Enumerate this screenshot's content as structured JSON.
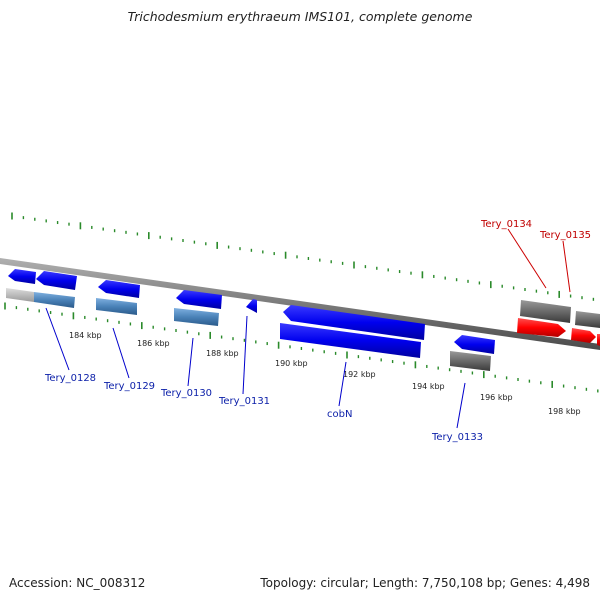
{
  "title": "Trichodesmium erythraeum IMS101, complete genome",
  "footer": {
    "accession": "Accession: NC_008312",
    "summary": "Topology: circular; Length: 7,750,108 bp; Genes: 4,498"
  },
  "scale_ticks": [
    "184 kbp",
    "186 kbp",
    "188 kbp",
    "190 kbp",
    "192 kbp",
    "194 kbp",
    "196 kbp",
    "198 kbp"
  ],
  "genes": [
    {
      "id": "Tery_0128",
      "color": "#0000ee"
    },
    {
      "id": "Tery_0129",
      "color": "#0000ee"
    },
    {
      "id": "Tery_0130",
      "color": "#0000ee"
    },
    {
      "id": "Tery_0131",
      "color": "#0000ee"
    },
    {
      "id": "cobN",
      "color": "#0000ee"
    },
    {
      "id": "Tery_0133",
      "color": "#0000ee"
    },
    {
      "id": "Tery_0134",
      "color": "#ee0000"
    },
    {
      "id": "Tery_0135",
      "color": "#ee0000"
    }
  ],
  "colors": {
    "gene_forward_reverse": "#1010f0",
    "gene_highlight": "#ff0000",
    "feature_grey": "#707070",
    "feature_steel": "#4a82b8",
    "backbone": "#8a8a8a",
    "tick_green": "#2a8a2a"
  }
}
